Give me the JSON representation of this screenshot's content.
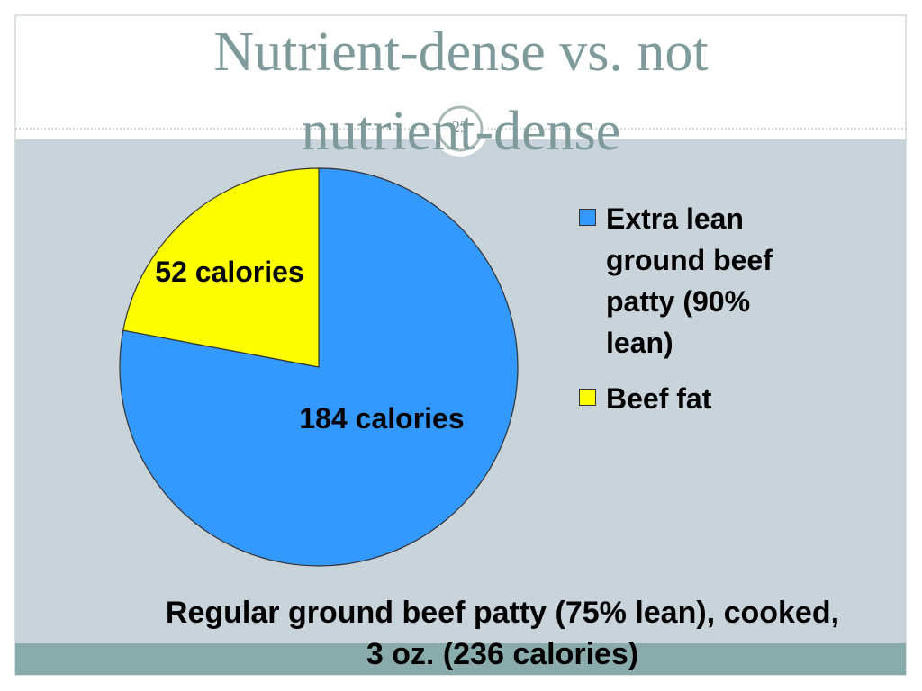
{
  "chart_data": {
    "type": "pie",
    "title": "Nutrient-dense vs. not nutrient-dense",
    "slide_number": "23",
    "categories": [
      "Extra lean ground beef patty (90% lean)",
      "Beef fat"
    ],
    "values": [
      184,
      52
    ],
    "value_labels": [
      "184 calories",
      "52 calories"
    ],
    "colors": [
      "#3399ff",
      "#ffff00"
    ],
    "caption": "Regular ground beef patty (75% lean), cooked, 3 oz. (236 calories)",
    "legend": "right"
  }
}
